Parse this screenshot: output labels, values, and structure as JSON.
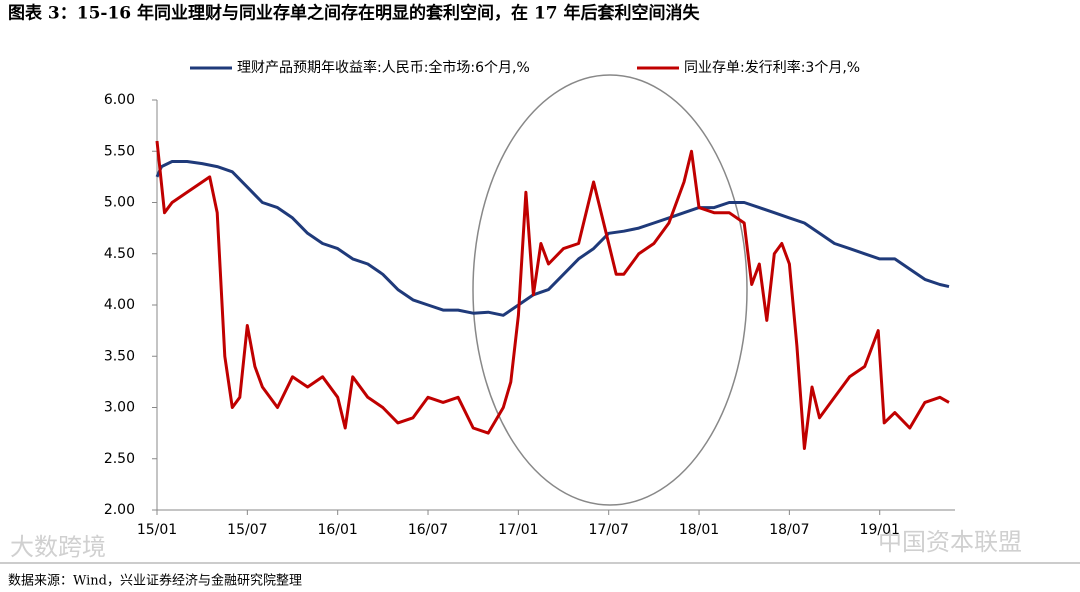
{
  "chart_data": {
    "type": "line",
    "title": "图表 3：15-16 年同业理财与同业存单之间存在明显的套利空间，在 17 年后套利空间消失",
    "source": "数据来源：Wind，兴业证券经济与金融研究院整理",
    "watermarks": [
      "大数跨境",
      "中国资本联盟"
    ],
    "xlim": [
      0,
      53
    ],
    "xticks": [
      {
        "value": 0,
        "label": "15/01"
      },
      {
        "value": 6,
        "label": "15/07"
      },
      {
        "value": 12,
        "label": "16/01"
      },
      {
        "value": 18,
        "label": "16/07"
      },
      {
        "value": 24,
        "label": "17/01"
      },
      {
        "value": 30,
        "label": "17/07"
      },
      {
        "value": 36,
        "label": "18/01"
      },
      {
        "value": 42,
        "label": "18/07"
      },
      {
        "value": 48,
        "label": "19/01"
      }
    ],
    "ylim": [
      2,
      6
    ],
    "yticks": [
      {
        "value": 2,
        "label": "2.00"
      },
      {
        "value": 2.5,
        "label": "2.50"
      },
      {
        "value": 3,
        "label": "3.00"
      },
      {
        "value": 3.5,
        "label": "3.50"
      },
      {
        "value": 4,
        "label": "4.00"
      },
      {
        "value": 4.5,
        "label": "4.50"
      },
      {
        "value": 5,
        "label": "5.00"
      },
      {
        "value": 5.5,
        "label": "5.50"
      },
      {
        "value": 6,
        "label": "6.00"
      }
    ],
    "series": [
      {
        "name": "理财产品预期年收益率:人民币:全市场:6个月,%",
        "color": "#1f3a7a",
        "x": [
          0,
          0.3,
          1,
          2,
          3,
          4,
          5,
          6,
          7,
          8,
          9,
          10,
          11,
          12,
          13,
          14,
          15,
          16,
          17,
          18,
          19,
          20,
          21,
          22,
          23,
          24,
          25,
          26,
          27,
          28,
          29,
          30,
          31,
          32,
          33,
          34,
          35,
          36,
          37,
          38,
          39,
          40,
          41,
          42,
          43,
          44,
          45,
          46,
          47,
          48,
          49,
          50,
          51,
          52,
          52.6
        ],
        "values": [
          5.25,
          5.35,
          5.4,
          5.4,
          5.38,
          5.35,
          5.3,
          5.15,
          5.0,
          4.95,
          4.85,
          4.7,
          4.6,
          4.55,
          4.45,
          4.4,
          4.3,
          4.15,
          4.05,
          4.0,
          3.95,
          3.95,
          3.92,
          3.93,
          3.9,
          4.0,
          4.1,
          4.15,
          4.3,
          4.45,
          4.55,
          4.7,
          4.72,
          4.75,
          4.8,
          4.85,
          4.9,
          4.95,
          4.95,
          5.0,
          5.0,
          4.95,
          4.9,
          4.85,
          4.8,
          4.7,
          4.6,
          4.55,
          4.5,
          4.45,
          4.45,
          4.35,
          4.25,
          4.2,
          4.18
        ]
      },
      {
        "name": "同业存单:发行利率:3个月,%",
        "color": "#c00000",
        "x": [
          0,
          0.5,
          1,
          2,
          3,
          3.5,
          4,
          4.5,
          5,
          5.5,
          6,
          6.5,
          7,
          8,
          9,
          10,
          11,
          12,
          12.5,
          13,
          14,
          15,
          16,
          17,
          18,
          19,
          20,
          21,
          22,
          23,
          23.5,
          24,
          24.5,
          25,
          25.5,
          26,
          27,
          28,
          29,
          30,
          30.5,
          31,
          32,
          33,
          34,
          35,
          35.5,
          36,
          37,
          38,
          39,
          39.5,
          40,
          40.5,
          41,
          41.5,
          42,
          42.5,
          43,
          43.5,
          44,
          45,
          46,
          47,
          47.9,
          48.3,
          49,
          50,
          51,
          52,
          52.6
        ],
        "values": [
          5.6,
          4.9,
          5.0,
          5.1,
          5.2,
          5.25,
          4.9,
          3.5,
          3.0,
          3.1,
          3.8,
          3.4,
          3.2,
          3.0,
          3.3,
          3.2,
          3.3,
          3.1,
          2.8,
          3.3,
          3.1,
          3.0,
          2.85,
          2.9,
          3.1,
          3.05,
          3.1,
          2.8,
          2.75,
          3.0,
          3.25,
          3.9,
          5.1,
          4.1,
          4.6,
          4.4,
          4.55,
          4.6,
          5.2,
          4.6,
          4.3,
          4.3,
          4.5,
          4.6,
          4.8,
          5.2,
          5.5,
          4.95,
          4.9,
          4.9,
          4.8,
          4.2,
          4.4,
          3.85,
          4.5,
          4.6,
          4.4,
          3.6,
          2.6,
          3.2,
          2.9,
          3.1,
          3.3,
          3.4,
          3.75,
          2.85,
          2.95,
          2.8,
          3.05,
          3.1,
          3.05
        ]
      }
    ]
  }
}
